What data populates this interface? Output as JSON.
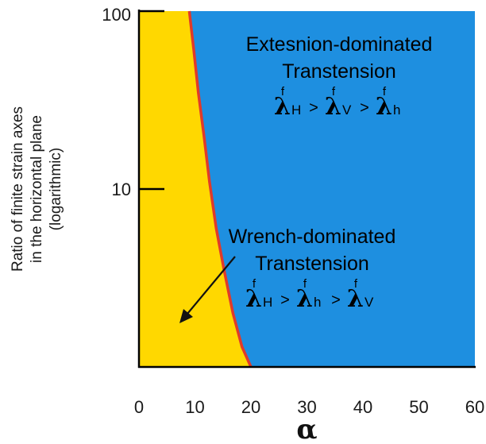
{
  "chart_data": {
    "type": "area",
    "title": "",
    "xlabel": "α",
    "ylabel_lines": [
      "Ratio of finite strain axes",
      "in the horizontal plane",
      "(logarithmic)"
    ],
    "xlim": [
      0,
      60
    ],
    "ylim": [
      1,
      100
    ],
    "y_scale": "log",
    "x_ticks": [
      0,
      10,
      20,
      30,
      40,
      50,
      60
    ],
    "x_tick_labels": [
      "0",
      "10",
      "20",
      "30",
      "40",
      "50",
      "60"
    ],
    "y_ticks": [
      10,
      100
    ],
    "y_tick_labels": [
      "10",
      "100"
    ],
    "grid": false,
    "boundary": {
      "color": "#e03a2a",
      "x": [
        9.0,
        9.8,
        10.6,
        11.6,
        12.6,
        13.8,
        15.2,
        16.8,
        18.4,
        20.0
      ],
      "y": [
        100,
        60,
        35,
        20,
        11,
        6,
        3.5,
        2,
        1.3,
        1
      ]
    },
    "regions": [
      {
        "name": "wrench",
        "color": "#ffd800",
        "lines": [
          "Wrench-dominated",
          "Transtension"
        ],
        "formula": [
          {
            "sup": "f",
            "sub": "H"
          },
          {
            "sup": "f",
            "sub": "h"
          },
          {
            "sup": "f",
            "sub": "V"
          }
        ]
      },
      {
        "name": "extension",
        "color": "#1e8fe0",
        "lines": [
          "Extesnion-dominated",
          "Transtension"
        ],
        "formula": [
          {
            "sup": "f",
            "sub": "H"
          },
          {
            "sup": "f",
            "sub": "V"
          },
          {
            "sup": "f",
            "sub": "h"
          }
        ]
      }
    ],
    "symbols": {
      "lambda": "λ",
      "gt": ">"
    }
  }
}
